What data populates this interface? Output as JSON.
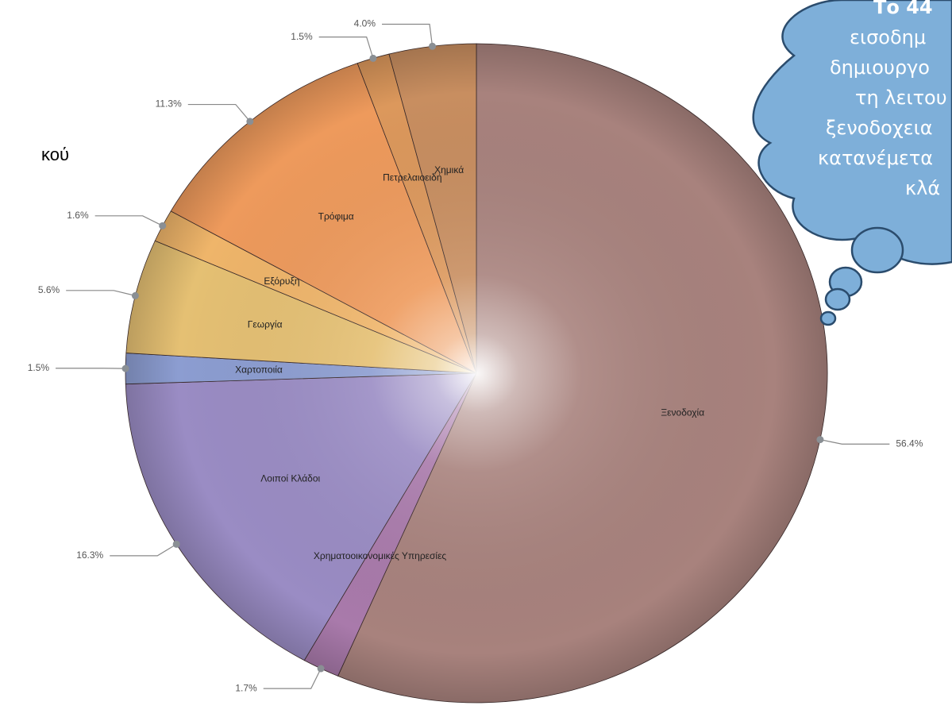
{
  "chart_data": {
    "type": "pie",
    "categories": [
      "Ξενοδοχία",
      "Χρηματοοικονομικές Υπηρεσίες",
      "Λοιποί Κλάδοι",
      "Χαρτοποιία",
      "Γεωργία",
      "Εξόρυξη",
      "Τρόφιμα",
      "Πετρελαιοειδή",
      "Χημικά"
    ],
    "values": [
      56.4,
      1.7,
      16.3,
      1.5,
      5.6,
      1.6,
      11.3,
      1.5,
      4.0
    ],
    "value_labels": [
      "56.4%",
      "1.7%",
      "16.3%",
      "1.5%",
      "5.6%",
      "1.6%",
      "11.3%",
      "1.5%",
      "4.0%"
    ],
    "colors": [
      "#a8827d",
      "#a97aab",
      "#9a8cc4",
      "#8c9dd1",
      "#e5c073",
      "#efb56a",
      "#ee9a5c",
      "#dc985c",
      "#c88e60"
    ]
  },
  "slide": {
    "fragment": "κού",
    "callout_lines": [
      "Το 44",
      "εισοδημ",
      "δημιουργο",
      "τη λειτου",
      "ξενοδοχεια",
      "κατανέμετα",
      "κλά"
    ]
  }
}
